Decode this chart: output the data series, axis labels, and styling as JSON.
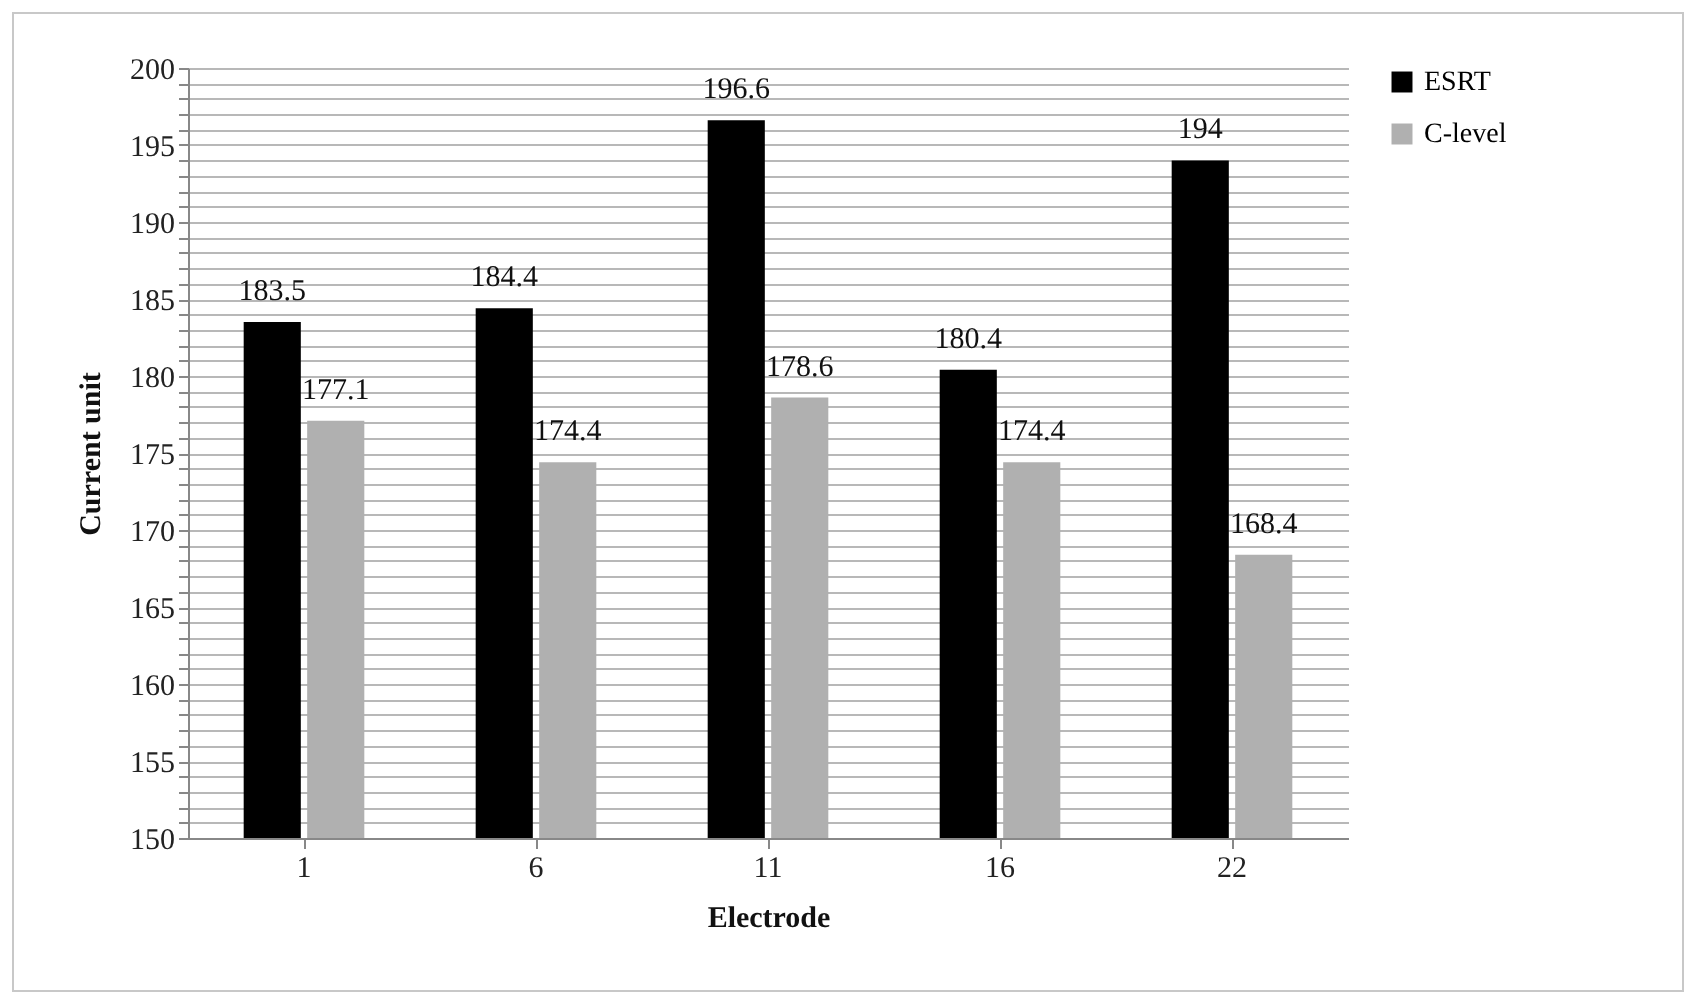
{
  "chart_data": {
    "type": "bar",
    "xlabel": "Electrode",
    "ylabel": "Current  unit",
    "categories": [
      "1",
      "6",
      "11",
      "16",
      "22"
    ],
    "series": [
      {
        "name": "ESRT",
        "color": "#000000",
        "values": [
          183.5,
          184.4,
          196.6,
          180.4,
          194
        ]
      },
      {
        "name": "C-level",
        "color": "#b0b0b0",
        "values": [
          177.1,
          174.4,
          178.6,
          174.4,
          168.4
        ]
      }
    ],
    "ylim": [
      150,
      200
    ],
    "yticks": [
      150,
      {
        "value": 151,
        "label": null
      },
      {
        "value": 152,
        "label": null
      },
      {
        "value": 153,
        "label": null
      },
      {
        "value": 154,
        "label": null
      },
      155,
      {
        "value": 156,
        "label": null
      },
      {
        "value": 157,
        "label": null
      },
      {
        "value": 158,
        "label": null
      },
      {
        "value": 159,
        "label": null
      },
      160,
      {
        "value": 161,
        "label": null
      },
      {
        "value": 162,
        "label": null
      },
      {
        "value": 163,
        "label": null
      },
      {
        "value": 164,
        "label": null
      },
      165,
      {
        "value": 166,
        "label": null
      },
      {
        "value": 167,
        "label": null
      },
      {
        "value": 168,
        "label": null
      },
      {
        "value": 169,
        "label": null
      },
      170,
      {
        "value": 171,
        "label": null
      },
      {
        "value": 172,
        "label": null
      },
      {
        "value": 173,
        "label": null
      },
      {
        "value": 174,
        "label": null
      },
      175,
      {
        "value": 176,
        "label": null
      },
      {
        "value": 177,
        "label": null
      },
      {
        "value": 178,
        "label": null
      },
      {
        "value": 179,
        "label": null
      },
      180,
      {
        "value": 181,
        "label": null
      },
      {
        "value": 182,
        "label": null
      },
      {
        "value": 183,
        "label": null
      },
      {
        "value": 184,
        "label": null
      },
      185,
      {
        "value": 186,
        "label": null
      },
      {
        "value": 187,
        "label": null
      },
      {
        "value": 188,
        "label": null
      },
      {
        "value": 189,
        "label": null
      },
      190,
      {
        "value": 191,
        "label": null
      },
      {
        "value": 192,
        "label": null
      },
      {
        "value": 193,
        "label": null
      },
      {
        "value": 194,
        "label": null
      },
      195,
      {
        "value": 196,
        "label": null
      },
      {
        "value": 197,
        "label": null
      },
      {
        "value": 198,
        "label": null
      },
      {
        "value": 199,
        "label": null
      },
      200
    ],
    "grid": "y",
    "legend": "right",
    "data_labels": true
  }
}
